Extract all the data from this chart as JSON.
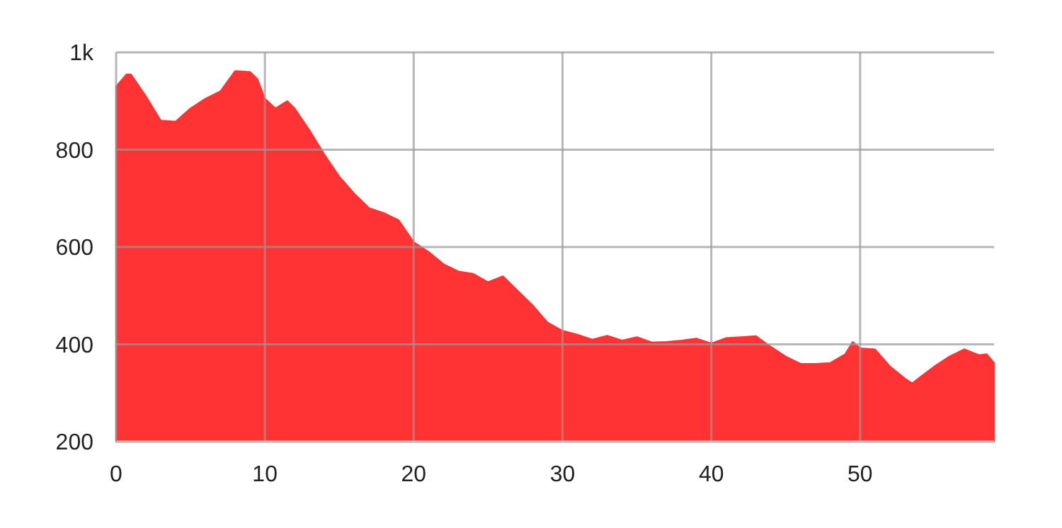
{
  "chart_data": {
    "type": "area",
    "x": [
      0,
      0.7,
      1,
      2,
      3,
      4,
      5,
      6,
      7,
      8,
      9,
      9.5,
      10,
      10.7,
      11.5,
      12,
      13,
      14,
      15,
      16,
      17,
      18,
      19,
      20,
      21,
      22,
      23,
      24,
      25,
      26,
      27,
      28,
      29,
      30,
      31,
      32,
      33,
      34,
      35,
      36,
      37,
      38,
      39,
      40,
      41,
      42,
      43,
      44,
      45,
      46,
      47,
      48,
      49,
      49.5,
      50,
      51,
      52,
      53,
      53.5,
      54,
      55,
      56,
      57,
      58,
      58.5,
      59
    ],
    "series": [
      {
        "color": "#ff3333",
        "values": [
          930,
          955,
          955,
          910,
          860,
          858,
          885,
          905,
          920,
          962,
          960,
          945,
          905,
          885,
          900,
          885,
          840,
          790,
          745,
          710,
          680,
          670,
          655,
          610,
          590,
          565,
          550,
          545,
          528,
          540,
          510,
          480,
          445,
          428,
          420,
          410,
          418,
          408,
          415,
          404,
          405,
          408,
          412,
          402,
          413,
          415,
          417,
          395,
          375,
          360,
          360,
          362,
          380,
          405,
          392,
          390,
          355,
          330,
          320,
          332,
          355,
          375,
          390,
          378,
          380,
          362
        ]
      }
    ],
    "xlim": [
      0,
      59
    ],
    "xticks": [
      0,
      10,
      20,
      30,
      40,
      50
    ],
    "ylim": [
      200,
      1000
    ],
    "yticks": [
      200,
      400,
      600,
      800,
      {
        "value": 1000,
        "label": "1k"
      }
    ],
    "grid": true
  }
}
